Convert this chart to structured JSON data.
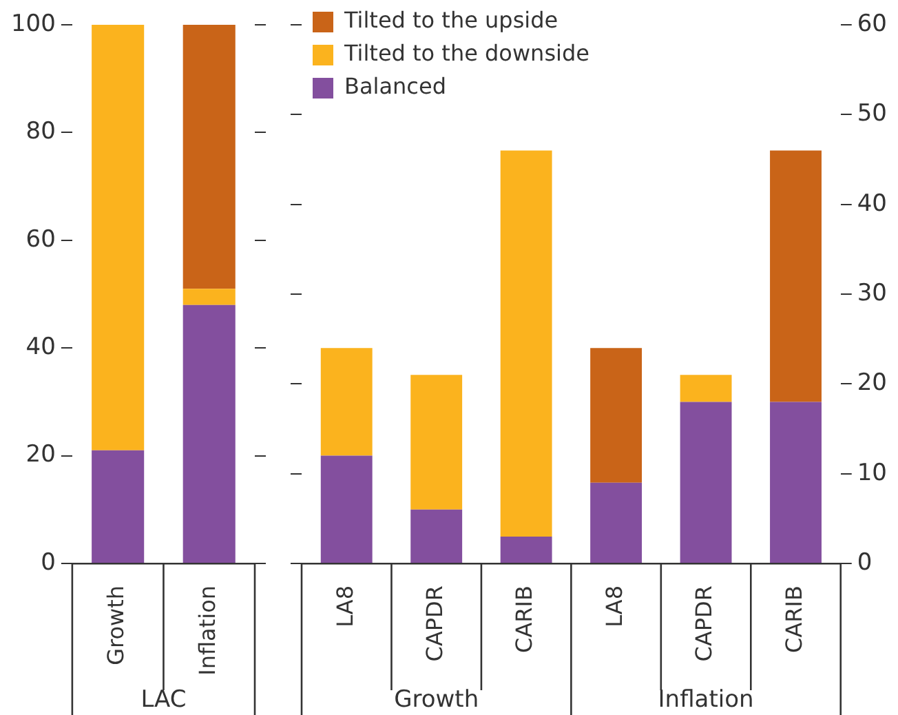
{
  "chart_data": [
    {
      "type": "bar",
      "stacked": true,
      "categories": [
        "Growth",
        "Inflation"
      ],
      "legend": false,
      "grid": false,
      "series": [
        {
          "color": "#834f9e",
          "values": [
            21,
            48
          ]
        },
        {
          "color": "#fbb31e",
          "values": [
            79,
            3
          ]
        },
        {
          "color": "#c96418",
          "values": [
            null,
            49
          ]
        }
      ],
      "ylim": [
        0,
        100
      ],
      "yticks": [
        0,
        20,
        40,
        60,
        80,
        100
      ],
      "annotations": [
        "LAC"
      ]
    },
    {
      "type": "bar",
      "stacked": true,
      "categories": [
        "LA8",
        "CAPDR",
        "CARIB",
        "LA8",
        "CAPDR",
        "CARIB"
      ],
      "legend": "top left",
      "grid": false,
      "series": [
        {
          "name": "Balanced",
          "color": "#834f9e",
          "axis": "y2",
          "values": [
            12,
            6,
            3,
            9,
            18,
            18
          ]
        },
        {
          "name": "Tilted to the downside",
          "color": "#fbb31e",
          "axis": "y2",
          "values": [
            12,
            15,
            43,
            null,
            3,
            null
          ]
        },
        {
          "name": "Tilted to the upside",
          "color": "#c96418",
          "axis": "y2",
          "values": [
            null,
            null,
            null,
            15,
            null,
            28
          ]
        }
      ],
      "y2lim": [
        0,
        60
      ],
      "y2ticks": [
        0,
        10,
        20,
        30,
        40,
        50,
        60
      ],
      "annotations": [
        "Growth",
        "Inflation"
      ]
    }
  ]
}
